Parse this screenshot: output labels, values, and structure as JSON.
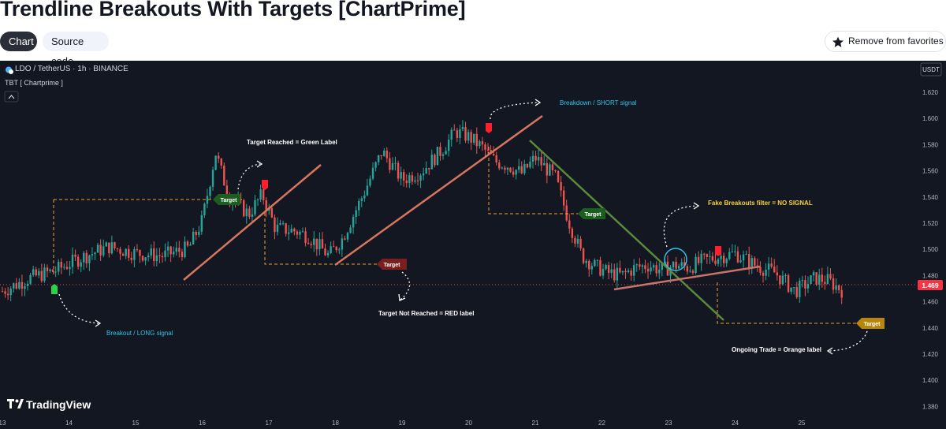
{
  "page": {
    "title": "Trendline Breakouts With Targets [ChartPrime]",
    "tabs": [
      "Chart",
      "Source code"
    ],
    "favorite_button": "Remove from favorites"
  },
  "chart_header": {
    "symbol": "LDO / TetherUS · 1h · BINANCE",
    "indicator": "TBT [ Chartprime ]",
    "currency": "USDT",
    "last_price": "1.469",
    "branding": "TradingView",
    "collapse_icon": "chevron-up-icon"
  },
  "colors": {
    "background": "#131722",
    "bull_candle": "#26a69a",
    "bear_candle": "#ef5350",
    "annotation_cyan": "#2ec4e6",
    "annotation_yellow": "#f5d142",
    "target_green": "#1b5e20",
    "target_red": "#7f1d1d",
    "target_orange": "#b8860b"
  },
  "chart_data": {
    "type": "candlestick",
    "x_tick_labels": [
      "13",
      "14",
      "15",
      "16",
      "17",
      "18",
      "19",
      "20",
      "21",
      "22",
      "23",
      "24",
      "25"
    ],
    "y_tick_labels": [
      "1.620",
      "1.600",
      "1.580",
      "1.560",
      "1.540",
      "1.520",
      "1.500",
      "1.480",
      "1.460",
      "1.440",
      "1.420",
      "1.400",
      "1.380"
    ],
    "ylim": [
      1.37,
      1.635
    ],
    "close_path": [
      [
        13.0,
        1.468
      ],
      [
        13.4,
        1.478
      ],
      [
        13.8,
        1.484
      ],
      [
        14.2,
        1.494
      ],
      [
        14.6,
        1.502
      ],
      [
        15.0,
        1.497
      ],
      [
        15.4,
        1.495
      ],
      [
        15.8,
        1.501
      ],
      [
        16.0,
        1.522
      ],
      [
        16.2,
        1.574
      ],
      [
        16.4,
        1.54
      ],
      [
        16.7,
        1.527
      ],
      [
        16.9,
        1.542
      ],
      [
        17.1,
        1.516
      ],
      [
        17.4,
        1.514
      ],
      [
        17.6,
        1.51
      ],
      [
        17.9,
        1.495
      ],
      [
        18.1,
        1.508
      ],
      [
        18.4,
        1.54
      ],
      [
        18.7,
        1.575
      ],
      [
        19.0,
        1.553
      ],
      [
        19.3,
        1.56
      ],
      [
        19.6,
        1.576
      ],
      [
        19.8,
        1.59
      ],
      [
        20.0,
        1.586
      ],
      [
        20.2,
        1.578
      ],
      [
        20.4,
        1.567
      ],
      [
        20.6,
        1.564
      ],
      [
        20.8,
        1.558
      ],
      [
        21.0,
        1.57
      ],
      [
        21.3,
        1.555
      ],
      [
        21.5,
        1.522
      ],
      [
        21.7,
        1.495
      ],
      [
        21.9,
        1.487
      ],
      [
        22.1,
        1.482
      ],
      [
        22.3,
        1.48
      ],
      [
        22.5,
        1.486
      ],
      [
        22.7,
        1.488
      ],
      [
        22.9,
        1.484
      ],
      [
        23.1,
        1.488
      ],
      [
        23.3,
        1.486
      ],
      [
        23.5,
        1.491
      ],
      [
        23.8,
        1.495
      ],
      [
        24.0,
        1.497
      ],
      [
        24.3,
        1.488
      ],
      [
        24.6,
        1.482
      ],
      [
        24.9,
        1.468
      ],
      [
        25.2,
        1.478
      ],
      [
        25.4,
        1.476
      ],
      [
        25.6,
        1.469
      ]
    ],
    "trendlines": [
      {
        "kind": "support",
        "x1": 15.7,
        "y1": 1.473,
        "x2": 16.8,
        "y2": 1.562
      },
      {
        "kind": "support",
        "x1": 17.0,
        "y1": 1.488,
        "x2": 20.0,
        "y2": 1.6
      },
      {
        "kind": "resistance",
        "x1": 20.9,
        "y1": 1.581,
        "x2": 22.8,
        "y2": 1.443
      },
      {
        "kind": "support",
        "x1": 22.1,
        "y1": 1.467,
        "x2": 23.4,
        "y2": 1.484
      }
    ],
    "annotations": [
      "Target Reached = Green Label",
      "Breakdown / SHORT signal",
      "Fake Breakouts filter = NO SIGNAL",
      "Target Not Reached  = RED label",
      "Breakout / LONG signal",
      "Ongoing Trade = Orange label"
    ],
    "target_labels": [
      {
        "text": "Target",
        "status": "reached",
        "x": 16.4,
        "y": 1.533
      },
      {
        "text": "Target",
        "status": "not reached",
        "x": 18.85,
        "y": 1.485
      },
      {
        "text": "Target",
        "status": "reached",
        "x": 21.8,
        "y": 1.524
      },
      {
        "text": "Target",
        "status": "ongoing",
        "x": 25.3,
        "y": 1.441
      }
    ]
  }
}
